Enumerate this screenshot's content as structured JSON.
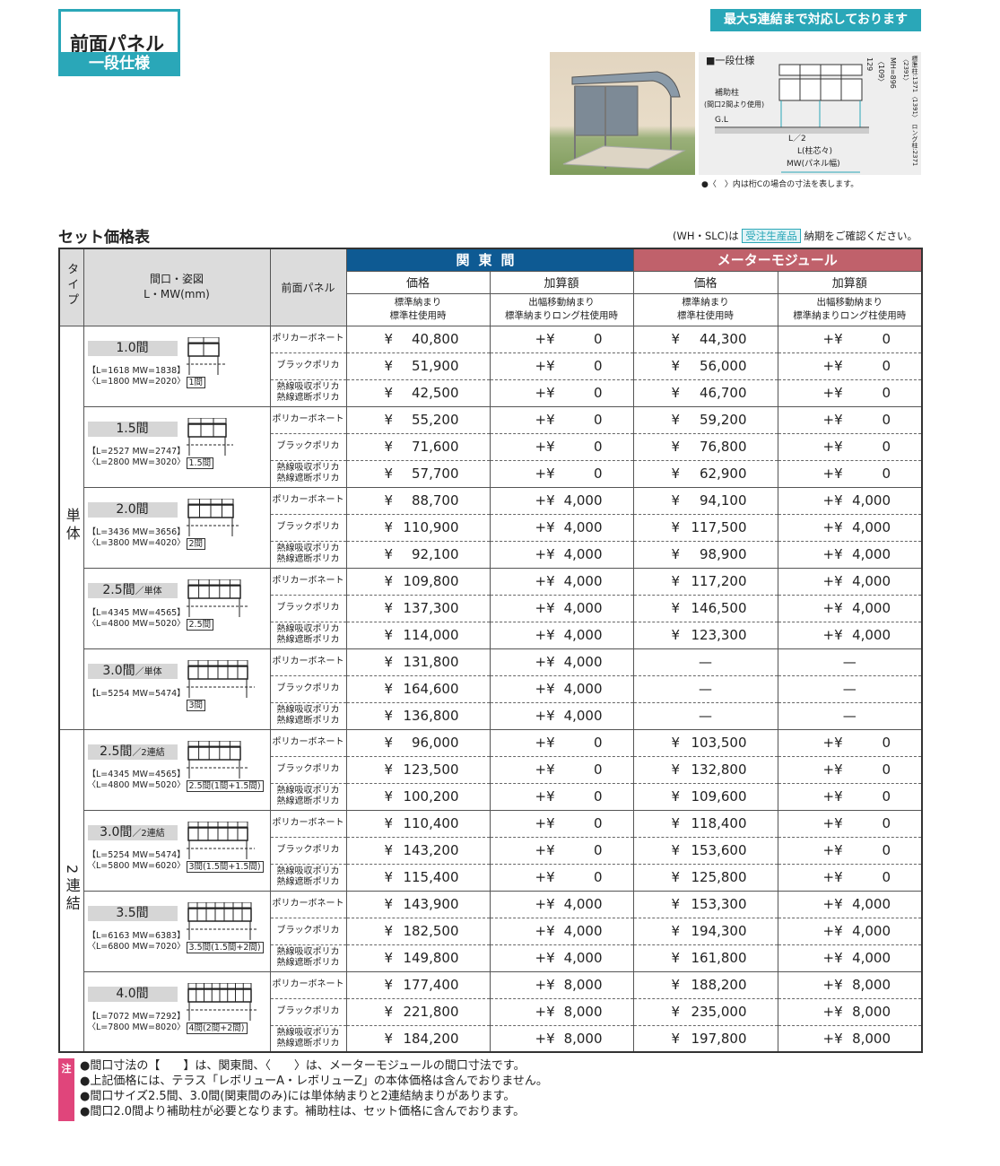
{
  "header": {
    "title": "前面パネル",
    "subtitle": "一段仕様",
    "banner": "最大5連結まで対応しております"
  },
  "diagram": {
    "title": "■一段仕様",
    "support_post": "補助柱",
    "support_post_note": "(間口2間より使用)",
    "gl": "G.L",
    "half_l": "L／2",
    "l_label": "L(柱芯々)",
    "mw_label": "MW(パネル幅)",
    "top_dim": "129",
    "top_dim_alt": "〈109〉",
    "mh": "MH=896",
    "height_note": "標準柱:1371〈1391〉 ロング柱:2371〈2391〉",
    "note": "●〈　〉内は桁Cの場合の寸法を表します。"
  },
  "section": {
    "title": "セット価格表",
    "note_prefix": "(WH・SLC)は",
    "badge": "受注生産品",
    "note_suffix": "納期をご確認ください。"
  },
  "colors": {
    "accent": "#2aa7b8",
    "kanto": "#0e5a93",
    "meter": "#c0616b",
    "note_mark": "#e0457b"
  },
  "table": {
    "headers": {
      "type": "タイプ",
      "size": "間口・姿図",
      "size_unit": "L・MW(mm)",
      "panel": "前面パネル",
      "kanto": "関東間",
      "meter": "メーターモジュール",
      "price": "価格",
      "add": "加算額",
      "price_sub1": "標準納まり",
      "price_sub2": "標準柱使用時",
      "add_sub1": "出幅移動納まり",
      "add_sub2": "標準納まりロング柱使用時"
    },
    "yen": "¥",
    "plus_yen": "+¥",
    "dash": "—",
    "panels": [
      "ポリカーボネート",
      "ブラックポリカ",
      "熱線吸収ポリカ",
      "熱線遮断ポリカ"
    ],
    "groups": [
      {
        "type": "単体",
        "sizes": [
          {
            "label": "1.0間",
            "suffix": "",
            "kanto_dim": "【L=1618 MW=1838】",
            "meter_dim": "〈L=1800 MW=2020〉",
            "diagram_label": "1間",
            "rows": [
              [
                "40,800",
                "0",
                "44,300",
                "0"
              ],
              [
                "51,900",
                "0",
                "56,000",
                "0"
              ],
              [
                "42,500",
                "0",
                "46,700",
                "0"
              ]
            ]
          },
          {
            "label": "1.5間",
            "suffix": "",
            "kanto_dim": "【L=2527 MW=2747】",
            "meter_dim": "〈L=2800 MW=3020〉",
            "diagram_label": "1.5間",
            "rows": [
              [
                "55,200",
                "0",
                "59,200",
                "0"
              ],
              [
                "71,600",
                "0",
                "76,800",
                "0"
              ],
              [
                "57,700",
                "0",
                "62,900",
                "0"
              ]
            ]
          },
          {
            "label": "2.0間",
            "suffix": "",
            "kanto_dim": "【L=3436 MW=3656】",
            "meter_dim": "〈L=3800 MW=4020〉",
            "diagram_label": "2間",
            "rows": [
              [
                "88,700",
                "4,000",
                "94,100",
                "4,000"
              ],
              [
                "110,900",
                "4,000",
                "117,500",
                "4,000"
              ],
              [
                "92,100",
                "4,000",
                "98,900",
                "4,000"
              ]
            ]
          },
          {
            "label": "2.5間",
            "suffix": "／単体",
            "kanto_dim": "【L=4345 MW=4565】",
            "meter_dim": "〈L=4800 MW=5020〉",
            "diagram_label": "2.5間",
            "rows": [
              [
                "109,800",
                "4,000",
                "117,200",
                "4,000"
              ],
              [
                "137,300",
                "4,000",
                "146,500",
                "4,000"
              ],
              [
                "114,000",
                "4,000",
                "123,300",
                "4,000"
              ]
            ]
          },
          {
            "label": "3.0間",
            "suffix": "／単体",
            "kanto_dim": "【L=5254 MW=5474】",
            "meter_dim": "",
            "diagram_label": "3間",
            "rows": [
              [
                "131,800",
                "4,000",
                null,
                null
              ],
              [
                "164,600",
                "4,000",
                null,
                null
              ],
              [
                "136,800",
                "4,000",
                null,
                null
              ]
            ]
          }
        ]
      },
      {
        "type": "2連結",
        "sizes": [
          {
            "label": "2.5間",
            "suffix": "／2連結",
            "kanto_dim": "【L=4345 MW=4565】",
            "meter_dim": "〈L=4800 MW=5020〉",
            "diagram_label": "2.5間(1間+1.5間)",
            "rows": [
              [
                "96,000",
                "0",
                "103,500",
                "0"
              ],
              [
                "123,500",
                "0",
                "132,800",
                "0"
              ],
              [
                "100,200",
                "0",
                "109,600",
                "0"
              ]
            ]
          },
          {
            "label": "3.0間",
            "suffix": "／2連結",
            "kanto_dim": "【L=5254 MW=5474】",
            "meter_dim": "〈L=5800 MW=6020〉",
            "diagram_label": "3間(1.5間+1.5間)",
            "rows": [
              [
                "110,400",
                "0",
                "118,400",
                "0"
              ],
              [
                "143,200",
                "0",
                "153,600",
                "0"
              ],
              [
                "115,400",
                "0",
                "125,800",
                "0"
              ]
            ]
          },
          {
            "label": "3.5間",
            "suffix": "",
            "kanto_dim": "【L=6163 MW=6383】",
            "meter_dim": "〈L=6800 MW=7020〉",
            "diagram_label": "3.5間(1.5間+2間)",
            "rows": [
              [
                "143,900",
                "4,000",
                "153,300",
                "4,000"
              ],
              [
                "182,500",
                "4,000",
                "194,300",
                "4,000"
              ],
              [
                "149,800",
                "4,000",
                "161,800",
                "4,000"
              ]
            ]
          },
          {
            "label": "4.0間",
            "suffix": "",
            "kanto_dim": "【L=7072 MW=7292】",
            "meter_dim": "〈L=7800 MW=8020〉",
            "diagram_label": "4間(2間+2間)",
            "rows": [
              [
                "177,400",
                "8,000",
                "188,200",
                "8,000"
              ],
              [
                "221,800",
                "8,000",
                "235,000",
                "8,000"
              ],
              [
                "184,200",
                "8,000",
                "197,800",
                "8,000"
              ]
            ]
          }
        ]
      }
    ]
  },
  "notes": {
    "mark": "注",
    "items": [
      "●間口寸法の【　　】は、関東間、〈　　〉は、メーターモジュールの間口寸法です。",
      "●上記価格には、テラス「レボリューA・レボリューZ」の本体価格は含んでおりません。",
      "●間口サイズ2.5間、3.0間(関東間のみ)には単体納まりと2連結納まりがあります。",
      "●間口2.0間より補助柱が必要となります。補助柱は、セット価格に含んでおります。"
    ]
  }
}
